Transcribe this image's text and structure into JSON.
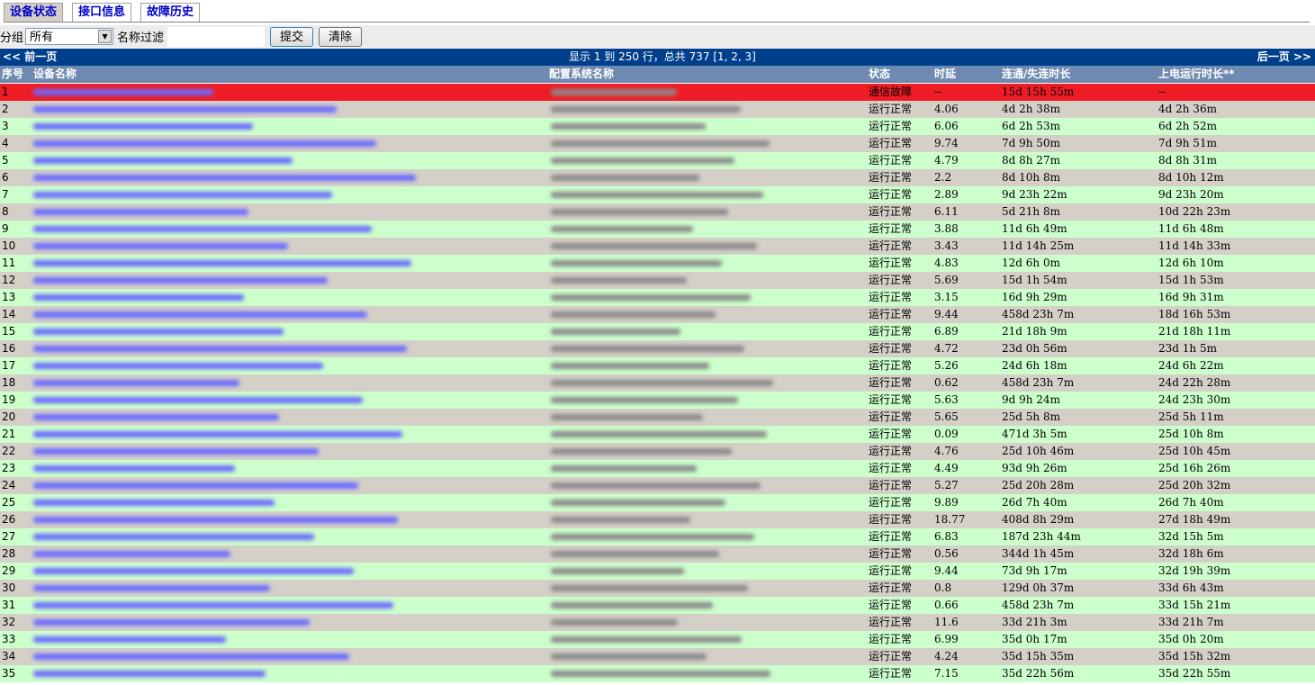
{
  "tabs": [
    {
      "label": "设备状态",
      "active": true
    },
    {
      "label": "接口信息",
      "active": false
    },
    {
      "label": "故障历史",
      "active": false
    }
  ],
  "filter": {
    "group_label": "分组",
    "group_value": "所有",
    "name_label": "名称过滤",
    "name_value": "",
    "submit": "提交",
    "clear": "清除"
  },
  "pager": {
    "prev": "<< 前一页",
    "info": "显示 1 到 250 行，总共 737 [1, 2, 3]",
    "next": "后一页 >>"
  },
  "columns": [
    "序号",
    "设备名称",
    "配置系统名称",
    "状态",
    "时延",
    "连通/失连时长",
    "上电运行时长**"
  ],
  "colors": {
    "fault": "#ee1c25",
    "ok_row": "#ccffcc",
    "alt_row": "#d4d0c8",
    "header": "#6e8ab0",
    "pager": "#003f8c"
  },
  "rows": [
    {
      "n": "1",
      "status": "通信故障",
      "delay": "--",
      "conn": "15d 15h 55m",
      "uptime": "--"
    },
    {
      "n": "2",
      "status": "运行正常",
      "delay": "4.06",
      "conn": "4d 2h 38m",
      "uptime": "4d 2h 36m"
    },
    {
      "n": "3",
      "status": "运行正常",
      "delay": "6.06",
      "conn": "6d 2h 53m",
      "uptime": "6d 2h 52m"
    },
    {
      "n": "4",
      "status": "运行正常",
      "delay": "9.74",
      "conn": "7d 9h 50m",
      "uptime": "7d 9h 51m"
    },
    {
      "n": "5",
      "status": "运行正常",
      "delay": "4.79",
      "conn": "8d 8h 27m",
      "uptime": "8d 8h 31m"
    },
    {
      "n": "6",
      "status": "运行正常",
      "delay": "2.2",
      "conn": "8d 10h 8m",
      "uptime": "8d 10h 12m"
    },
    {
      "n": "7",
      "status": "运行正常",
      "delay": "2.89",
      "conn": "9d 23h 22m",
      "uptime": "9d 23h 20m"
    },
    {
      "n": "8",
      "status": "运行正常",
      "delay": "6.11",
      "conn": "5d 21h 8m",
      "uptime": "10d 22h 23m"
    },
    {
      "n": "9",
      "status": "运行正常",
      "delay": "3.88",
      "conn": "11d 6h 49m",
      "uptime": "11d 6h 48m"
    },
    {
      "n": "10",
      "status": "运行正常",
      "delay": "3.43",
      "conn": "11d 14h 25m",
      "uptime": "11d 14h 33m"
    },
    {
      "n": "11",
      "status": "运行正常",
      "delay": "4.83",
      "conn": "12d 6h 0m",
      "uptime": "12d 6h 10m"
    },
    {
      "n": "12",
      "status": "运行正常",
      "delay": "5.69",
      "conn": "15d 1h 54m",
      "uptime": "15d 1h 53m"
    },
    {
      "n": "13",
      "status": "运行正常",
      "delay": "3.15",
      "conn": "16d 9h 29m",
      "uptime": "16d 9h 31m"
    },
    {
      "n": "14",
      "status": "运行正常",
      "delay": "9.44",
      "conn": "458d 23h 7m",
      "uptime": "18d 16h 53m"
    },
    {
      "n": "15",
      "status": "运行正常",
      "delay": "6.89",
      "conn": "21d 18h 9m",
      "uptime": "21d 18h 11m"
    },
    {
      "n": "16",
      "status": "运行正常",
      "delay": "4.72",
      "conn": "23d 0h 56m",
      "uptime": "23d 1h 5m"
    },
    {
      "n": "17",
      "status": "运行正常",
      "delay": "5.26",
      "conn": "24d 6h 18m",
      "uptime": "24d 6h 22m"
    },
    {
      "n": "18",
      "status": "运行正常",
      "delay": "0.62",
      "conn": "458d 23h 7m",
      "uptime": "24d 22h 28m"
    },
    {
      "n": "19",
      "status": "运行正常",
      "delay": "5.63",
      "conn": "9d 9h 24m",
      "uptime": "24d 23h 30m"
    },
    {
      "n": "20",
      "status": "运行正常",
      "delay": "5.65",
      "conn": "25d 5h 8m",
      "uptime": "25d 5h 11m"
    },
    {
      "n": "21",
      "status": "运行正常",
      "delay": "0.09",
      "conn": "471d 3h 5m",
      "uptime": "25d 10h 8m"
    },
    {
      "n": "22",
      "status": "运行正常",
      "delay": "4.76",
      "conn": "25d 10h 46m",
      "uptime": "25d 10h 45m"
    },
    {
      "n": "23",
      "status": "运行正常",
      "delay": "4.49",
      "conn": "93d 9h 26m",
      "uptime": "25d 16h 26m"
    },
    {
      "n": "24",
      "status": "运行正常",
      "delay": "5.27",
      "conn": "25d 20h 28m",
      "uptime": "25d 20h 32m"
    },
    {
      "n": "25",
      "status": "运行正常",
      "delay": "9.89",
      "conn": "26d 7h 40m",
      "uptime": "26d 7h 40m"
    },
    {
      "n": "26",
      "status": "运行正常",
      "delay": "18.77",
      "conn": "408d 8h 29m",
      "uptime": "27d 18h 49m"
    },
    {
      "n": "27",
      "status": "运行正常",
      "delay": "6.83",
      "conn": "187d 23h 44m",
      "uptime": "32d 15h 5m"
    },
    {
      "n": "28",
      "status": "运行正常",
      "delay": "0.56",
      "conn": "344d 1h 45m",
      "uptime": "32d 18h 6m"
    },
    {
      "n": "29",
      "status": "运行正常",
      "delay": "9.44",
      "conn": "73d 9h 17m",
      "uptime": "32d 19h 39m"
    },
    {
      "n": "30",
      "status": "运行正常",
      "delay": "0.8",
      "conn": "129d 0h 37m",
      "uptime": "33d 6h 43m"
    },
    {
      "n": "31",
      "status": "运行正常",
      "delay": "0.66",
      "conn": "458d 23h 7m",
      "uptime": "33d 15h 21m"
    },
    {
      "n": "32",
      "status": "运行正常",
      "delay": "11.6",
      "conn": "33d 21h 3m",
      "uptime": "33d 21h 7m"
    },
    {
      "n": "33",
      "status": "运行正常",
      "delay": "6.99",
      "conn": "35d 0h 17m",
      "uptime": "35d 0h 20m"
    },
    {
      "n": "34",
      "status": "运行正常",
      "delay": "4.24",
      "conn": "35d 15h 35m",
      "uptime": "35d 15h 32m"
    },
    {
      "n": "35",
      "status": "运行正常",
      "delay": "7.15",
      "conn": "35d 22h 56m",
      "uptime": "35d 22h 55m"
    }
  ]
}
